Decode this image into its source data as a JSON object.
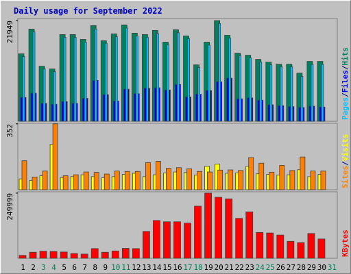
{
  "chart_data": {
    "type": "webalizer-daily",
    "title": "Daily usage for September 2022",
    "title_color": "#0000c0",
    "categories": [
      "1",
      "2",
      "3",
      "4",
      "5",
      "6",
      "7",
      "8",
      "9",
      "10",
      "11",
      "12",
      "13",
      "14",
      "15",
      "16",
      "17",
      "18",
      "19",
      "20",
      "21",
      "22",
      "23",
      "24",
      "25",
      "26",
      "27",
      "28",
      "29",
      "30",
      "31"
    ],
    "category_colors": [
      "#000000",
      "#000000",
      "#00805c",
      "#00805c",
      "#000000",
      "#000000",
      "#000000",
      "#000000",
      "#000000",
      "#00805c",
      "#00805c",
      "#000000",
      "#000000",
      "#000000",
      "#000000",
      "#000000",
      "#00805c",
      "#00805c",
      "#000000",
      "#000000",
      "#000000",
      "#000000",
      "#000000",
      "#00805c",
      "#00805c",
      "#000000",
      "#000000",
      "#000000",
      "#000000",
      "#000000",
      "#00805c"
    ],
    "legend_separator": "/",
    "legend_separator_color": "#000080",
    "panels": [
      {
        "ylim": [
          0,
          22400
        ],
        "yticks": [
          21949
        ],
        "series": [
          {
            "name": "Hits",
            "color": "#00805c",
            "values": [
              14700,
              20100,
              12000,
              11400,
              18900,
              18900,
              17850,
              20850,
              17550,
              19050,
              21000,
              19200,
              18900,
              19800,
              17250,
              19950,
              18600,
              12300,
              17250,
              21949,
              18750,
              14850,
              14400,
              13500,
              12900,
              12450,
              12450,
              10500,
              13050,
              13050,
              null
            ]
          },
          {
            "name": "Files",
            "color": "#0000ff",
            "values": [
              5200,
              6100,
              3900,
              3700,
              4300,
              3900,
              5000,
              8900,
              5800,
              4400,
              7000,
              6000,
              7200,
              7300,
              6800,
              8000,
              5300,
              5900,
              6700,
              8600,
              9400,
              4900,
              5100,
              4600,
              3600,
              3400,
              3200,
              3000,
              3300,
              3100,
              null
            ]
          },
          {
            "name": "Pages",
            "color": "#00c0ff",
            "values": [
              14100,
              19500,
              11400,
              10800,
              18300,
              18300,
              17250,
              20100,
              17000,
              18450,
              20300,
              18600,
              18300,
              19100,
              16700,
              19300,
              18000,
              11700,
              16600,
              21300,
              18100,
              14300,
              13800,
              12900,
              12300,
              11900,
              11900,
              9800,
              12400,
              12400,
              null
            ]
          }
        ]
      },
      {
        "ylim": [
          0,
          355
        ],
        "yticks": [
          352
        ],
        "series": [
          {
            "name": "Visits",
            "color": "#ffff00",
            "values": [
              58,
              50,
              75,
              243,
              65,
              70,
              80,
              70,
              64,
              70,
              82,
              88,
              70,
              80,
              90,
              95,
              92,
              78,
              125,
              137,
              88,
              90,
              125,
              85,
              82,
              78,
              80,
              107,
              70,
              82,
              null
            ]
          },
          {
            "name": "Sites",
            "color": "#ff8000",
            "values": [
              155,
              68,
              100,
              352,
              75,
              80,
              95,
              93,
              84,
              100,
              98,
              98,
              145,
              152,
              115,
              118,
              112,
              98,
              95,
              105,
              106,
              103,
              172,
              142,
              94,
              130,
              103,
              175,
              100,
              100,
              null
            ]
          }
        ]
      },
      {
        "ylim": [
          0,
          255000
        ],
        "yticks": [
          249999
        ],
        "series": [
          {
            "name": "KBytes",
            "color": "#ff0000",
            "values": [
              11000,
              23000,
              27000,
              26000,
              24000,
              18000,
              16000,
              37000,
              23000,
              28000,
              38000,
              37000,
              103000,
              145000,
              140000,
              140000,
              135000,
              200000,
              249999,
              234000,
              228000,
              153000,
              178000,
              99000,
              97000,
              89000,
              65000,
              60000,
              95000,
              74000,
              null
            ]
          }
        ]
      }
    ]
  }
}
